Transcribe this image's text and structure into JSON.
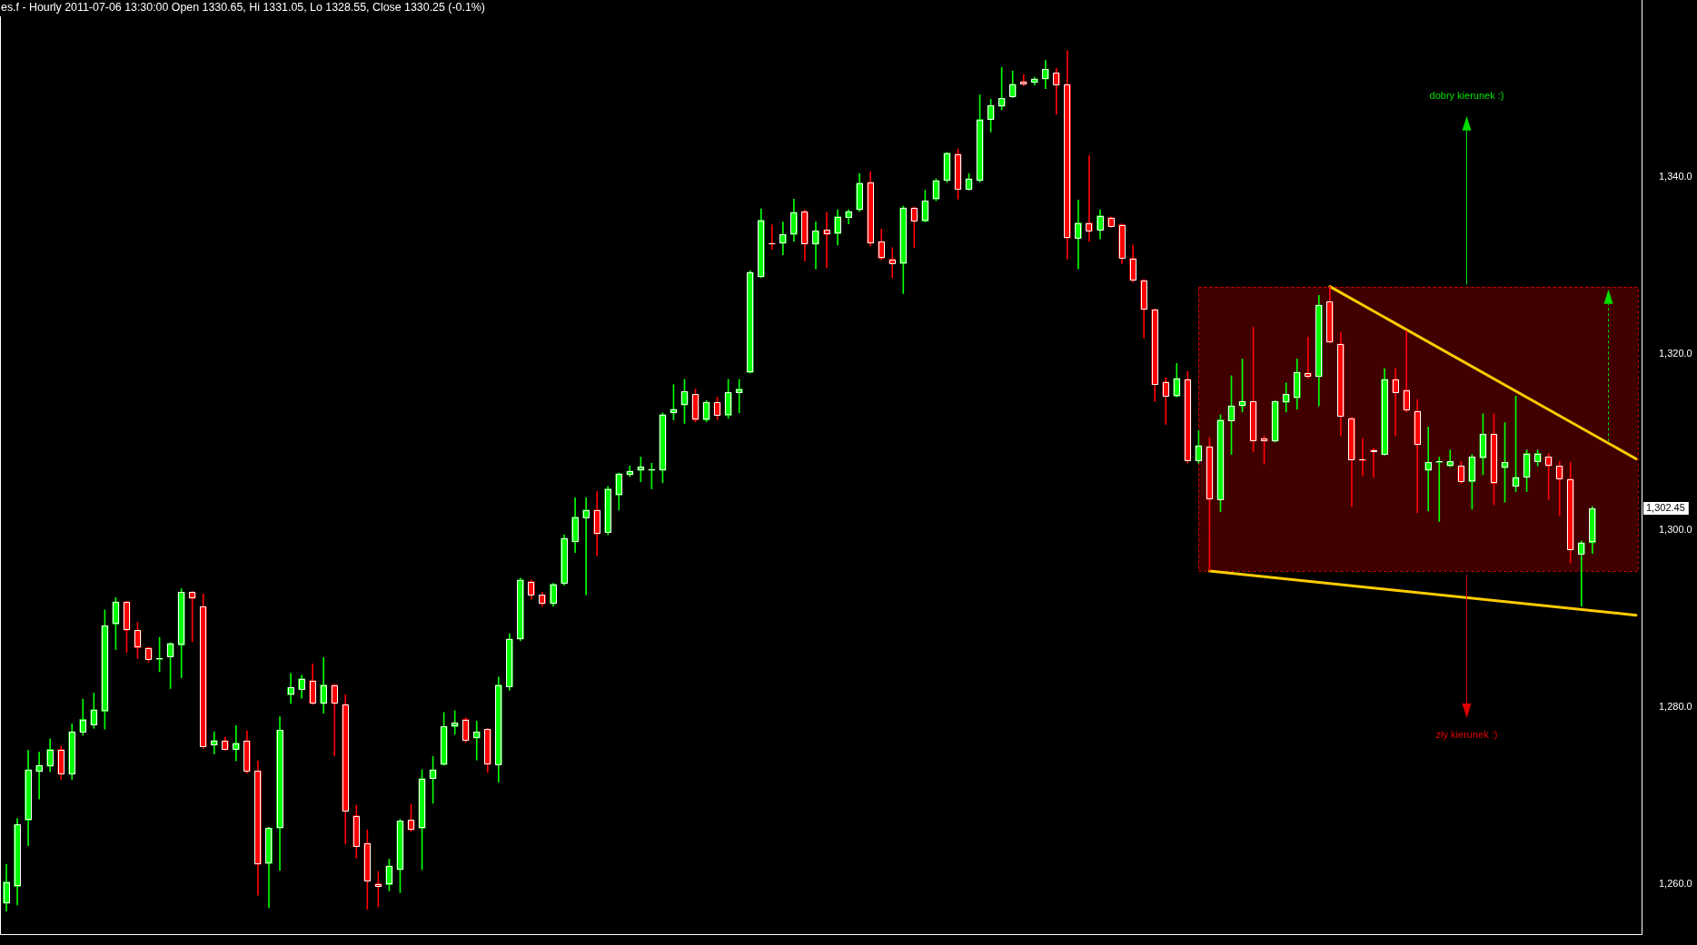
{
  "chart_data": {
    "type": "candlestick",
    "title": "es.f - Hourly 2011-07-06 13:30:00 Open 1330.65, Hi 1331.05, Lo 1328.55, Close 1330.25 (-0.1%)",
    "categories": [
      null,
      null,
      null,
      null,
      null,
      null,
      null,
      null,
      null,
      null,
      null,
      null,
      null,
      null,
      null,
      null,
      null,
      null,
      null,
      null,
      null,
      null,
      null,
      null,
      null,
      null,
      null,
      null,
      null,
      null,
      null,
      null,
      null,
      null,
      null,
      null,
      null,
      null,
      null,
      null,
      null,
      null,
      null,
      null,
      null,
      null,
      null,
      null,
      null,
      null,
      null,
      null,
      null,
      null,
      null,
      null,
      null,
      null,
      null,
      null,
      null,
      null,
      null,
      null,
      null,
      null,
      null,
      null,
      null,
      null,
      null,
      null,
      null,
      null,
      null,
      null,
      null,
      null,
      null,
      null,
      null,
      null,
      null,
      null,
      null,
      null,
      null,
      null,
      null,
      null,
      null,
      null,
      null,
      null,
      null,
      null,
      null,
      null,
      null,
      null,
      null,
      null,
      null,
      null,
      null,
      null,
      null,
      null,
      null,
      null,
      null,
      null,
      null,
      null,
      null,
      null,
      null,
      null,
      null,
      null,
      null,
      null,
      null,
      null,
      null,
      null,
      null,
      null,
      null,
      null,
      null,
      null,
      null,
      null,
      null,
      null,
      null,
      null,
      null,
      null,
      null,
      null,
      null,
      null,
      null,
      null,
      null,
      null,
      null,
      null
    ],
    "ohlc": [
      [
        1257.8,
        1262.2,
        1256.9,
        1260.2
      ],
      [
        1259.7,
        1267.4,
        1257.6,
        1266.7
      ],
      [
        1267.2,
        1275.1,
        1264.3,
        1272.9
      ],
      [
        1272.7,
        1274.9,
        1269.6,
        1273.4
      ],
      [
        1273.3,
        1276.4,
        1272.7,
        1275.2
      ],
      [
        1275.2,
        1275.6,
        1271.8,
        1272.4
      ],
      [
        1272.4,
        1278.1,
        1271.8,
        1277.2
      ],
      [
        1277.2,
        1280.9,
        1276.8,
        1278.6
      ],
      [
        1278.0,
        1281.6,
        1277.6,
        1279.7
      ],
      [
        1279.5,
        1291.0,
        1277.5,
        1289.2
      ],
      [
        1289.4,
        1292.4,
        1286.5,
        1291.9
      ],
      [
        1291.9,
        1292.0,
        1286.2,
        1288.7
      ],
      [
        1288.7,
        1289.6,
        1285.5,
        1286.7
      ],
      [
        1286.7,
        1286.8,
        1285.1,
        1285.4
      ],
      [
        1285.4,
        1287.9,
        1284.0,
        1285.5
      ],
      [
        1285.7,
        1287.3,
        1282.1,
        1287.2
      ],
      [
        1287.0,
        1293.4,
        1283.3,
        1293.0
      ],
      [
        1293.0,
        1293.1,
        1287.4,
        1292.3
      ],
      [
        1291.4,
        1292.8,
        1275.3,
        1275.5
      ],
      [
        1275.7,
        1277.2,
        1274.7,
        1276.2
      ],
      [
        1276.2,
        1276.6,
        1275.1,
        1275.2
      ],
      [
        1275.2,
        1277.9,
        1273.9,
        1275.9
      ],
      [
        1276.2,
        1277.3,
        1272.5,
        1272.7
      ],
      [
        1272.8,
        1273.9,
        1258.7,
        1262.2
      ],
      [
        1262.3,
        1266.4,
        1257.3,
        1266.3
      ],
      [
        1266.3,
        1278.9,
        1261.5,
        1277.4
      ],
      [
        1281.4,
        1283.8,
        1280.4,
        1282.2
      ],
      [
        1282.0,
        1283.6,
        1281.0,
        1283.2
      ],
      [
        1283.0,
        1284.9,
        1280.3,
        1280.4
      ],
      [
        1280.4,
        1285.6,
        1279.3,
        1282.5
      ],
      [
        1282.5,
        1282.6,
        1274.5,
        1280.4
      ],
      [
        1280.3,
        1281.4,
        1264.5,
        1268.2
      ],
      [
        1267.7,
        1268.9,
        1262.9,
        1264.2
      ],
      [
        1264.6,
        1266.1,
        1257.1,
        1260.3
      ],
      [
        1260.0,
        1261.4,
        1257.4,
        1259.7
      ],
      [
        1259.9,
        1262.8,
        1259.2,
        1262.0
      ],
      [
        1261.6,
        1267.3,
        1259.0,
        1267.1
      ],
      [
        1267.2,
        1269.0,
        1265.9,
        1266.1
      ],
      [
        1266.3,
        1272.9,
        1261.6,
        1271.9
      ],
      [
        1271.9,
        1274.4,
        1269.1,
        1272.9
      ],
      [
        1273.5,
        1279.4,
        1273.4,
        1277.8
      ],
      [
        1277.8,
        1279.6,
        1276.9,
        1278.2
      ],
      [
        1278.6,
        1278.8,
        1276.0,
        1276.2
      ],
      [
        1276.5,
        1278.4,
        1274.0,
        1277.2
      ],
      [
        1277.5,
        1277.6,
        1272.6,
        1273.5
      ],
      [
        1273.5,
        1283.4,
        1271.5,
        1282.5
      ],
      [
        1282.3,
        1288.3,
        1281.9,
        1287.7
      ],
      [
        1287.7,
        1294.6,
        1287.5,
        1294.4
      ],
      [
        1294.2,
        1294.4,
        1292.2,
        1292.7
      ],
      [
        1292.7,
        1293.0,
        1291.4,
        1291.7
      ],
      [
        1291.7,
        1294.0,
        1291.4,
        1293.9
      ],
      [
        1294.0,
        1299.5,
        1293.8,
        1299.1
      ],
      [
        1298.7,
        1303.7,
        1297.5,
        1301.5
      ],
      [
        1301.4,
        1303.7,
        1292.7,
        1302.3
      ],
      [
        1302.3,
        1304.4,
        1297.1,
        1299.6
      ],
      [
        1299.8,
        1305.0,
        1299.5,
        1304.7
      ],
      [
        1304.0,
        1306.5,
        1302.3,
        1306.4
      ],
      [
        1306.3,
        1307.3,
        1306.1,
        1306.7
      ],
      [
        1306.8,
        1308.3,
        1305.5,
        1307.2
      ],
      [
        1306.8,
        1307.6,
        1304.7,
        1306.9
      ],
      [
        1306.8,
        1313.3,
        1305.4,
        1313.1
      ],
      [
        1313.3,
        1316.5,
        1312.5,
        1313.7
      ],
      [
        1314.2,
        1317.1,
        1312.1,
        1315.7
      ],
      [
        1315.4,
        1316.0,
        1312.3,
        1312.5
      ],
      [
        1312.5,
        1314.7,
        1312.3,
        1314.5
      ],
      [
        1314.5,
        1315.1,
        1312.5,
        1313.0
      ],
      [
        1313.0,
        1317.1,
        1312.7,
        1315.6
      ],
      [
        1315.6,
        1317.1,
        1313.3,
        1316.0
      ],
      [
        1317.9,
        1329.4,
        1317.8,
        1329.2
      ],
      [
        1328.7,
        1336.4,
        1328.6,
        1335.1
      ],
      [
        1332.5,
        1334.6,
        1331.8,
        1332.4
      ],
      [
        1332.5,
        1334.9,
        1331.2,
        1333.5
      ],
      [
        1333.5,
        1337.5,
        1332.7,
        1336.0
      ],
      [
        1336.1,
        1336.3,
        1330.5,
        1332.4
      ],
      [
        1332.4,
        1334.9,
        1329.6,
        1333.9
      ],
      [
        1334.0,
        1336.0,
        1329.7,
        1333.5
      ],
      [
        1333.6,
        1336.3,
        1332.3,
        1335.5
      ],
      [
        1335.4,
        1336.3,
        1334.7,
        1336.1
      ],
      [
        1336.3,
        1340.4,
        1336.1,
        1339.3
      ],
      [
        1339.4,
        1340.6,
        1332.2,
        1332.5
      ],
      [
        1332.7,
        1334.1,
        1330.6,
        1330.8
      ],
      [
        1330.7,
        1332.0,
        1328.6,
        1330.2
      ],
      [
        1330.2,
        1336.7,
        1326.8,
        1336.5
      ],
      [
        1336.5,
        1336.6,
        1332.0,
        1335.0
      ],
      [
        1335.0,
        1338.5,
        1334.9,
        1337.3
      ],
      [
        1337.5,
        1339.8,
        1337.3,
        1339.6
      ],
      [
        1339.6,
        1342.8,
        1339.4,
        1342.7
      ],
      [
        1342.6,
        1343.2,
        1337.5,
        1338.6
      ],
      [
        1338.6,
        1340.4,
        1338.5,
        1339.8
      ],
      [
        1339.6,
        1349.3,
        1339.4,
        1346.5
      ],
      [
        1346.5,
        1348.8,
        1345.1,
        1348.1
      ],
      [
        1348.0,
        1352.4,
        1347.6,
        1348.9
      ],
      [
        1349.1,
        1352.0,
        1349.0,
        1350.5
      ],
      [
        1350.8,
        1351.6,
        1350.3,
        1350.5
      ],
      [
        1350.7,
        1351.3,
        1350.4,
        1351.1
      ],
      [
        1351.1,
        1353.2,
        1350.0,
        1352.2
      ],
      [
        1351.8,
        1352.3,
        1347.1,
        1350.4
      ],
      [
        1350.5,
        1354.3,
        1330.7,
        1333.1
      ],
      [
        1333.1,
        1337.4,
        1329.6,
        1334.8
      ],
      [
        1334.8,
        1342.4,
        1332.7,
        1333.9
      ],
      [
        1334.0,
        1336.3,
        1333.0,
        1335.6
      ],
      [
        1335.4,
        1335.5,
        1334.3,
        1334.4
      ],
      [
        1334.6,
        1334.7,
        1330.2,
        1330.8
      ],
      [
        1330.8,
        1332.3,
        1328.1,
        1328.3
      ],
      [
        1328.3,
        1328.4,
        1321.8,
        1325.0
      ],
      [
        1325.0,
        1325.1,
        1314.6,
        1316.5
      ],
      [
        1316.8,
        1317.3,
        1312.0,
        1315.2
      ],
      [
        1315.2,
        1318.9,
        1315.1,
        1317.2
      ],
      [
        1317.1,
        1318.0,
        1307.6,
        1307.9
      ],
      [
        1307.9,
        1311.3,
        1307.6,
        1309.6
      ],
      [
        1309.5,
        1310.5,
        1295.4,
        1303.5
      ],
      [
        1303.5,
        1313.1,
        1302.1,
        1312.5
      ],
      [
        1312.4,
        1317.5,
        1308.6,
        1314.1
      ],
      [
        1314.1,
        1319.4,
        1313.4,
        1314.6
      ],
      [
        1314.6,
        1323.0,
        1308.9,
        1310.1
      ],
      [
        1310.4,
        1310.7,
        1307.5,
        1310.1
      ],
      [
        1310.1,
        1314.7,
        1310.0,
        1314.6
      ],
      [
        1314.5,
        1316.7,
        1313.4,
        1315.4
      ],
      [
        1315.0,
        1319.4,
        1313.7,
        1317.9
      ],
      [
        1317.8,
        1321.9,
        1317.2,
        1317.4
      ],
      [
        1317.4,
        1326.6,
        1314.1,
        1325.5
      ],
      [
        1325.9,
        1327.6,
        1321.2,
        1321.3
      ],
      [
        1321.1,
        1322.4,
        1310.7,
        1312.9
      ],
      [
        1312.7,
        1312.8,
        1302.7,
        1308.0
      ],
      [
        1308.0,
        1310.4,
        1306.2,
        1307.9
      ],
      [
        1309.1,
        1309.3,
        1306.0,
        1308.9
      ],
      [
        1308.6,
        1318.3,
        1308.5,
        1317.1
      ],
      [
        1317.1,
        1318.3,
        1310.7,
        1315.6
      ],
      [
        1315.9,
        1322.6,
        1313.4,
        1313.6
      ],
      [
        1313.5,
        1314.8,
        1302.0,
        1309.7
      ],
      [
        1306.8,
        1311.7,
        1302.2,
        1307.7
      ],
      [
        1307.7,
        1308.3,
        1301.0,
        1307.8
      ],
      [
        1307.3,
        1309.1,
        1307.2,
        1307.8
      ],
      [
        1307.3,
        1307.8,
        1305.3,
        1305.5
      ],
      [
        1305.5,
        1308.6,
        1302.4,
        1308.3
      ],
      [
        1308.2,
        1313.2,
        1306.3,
        1310.9
      ],
      [
        1310.9,
        1313.2,
        1302.9,
        1305.3
      ],
      [
        1307.1,
        1312.2,
        1303.2,
        1307.7
      ],
      [
        1305.0,
        1315.2,
        1304.4,
        1306.0
      ],
      [
        1306.0,
        1309.1,
        1304.4,
        1308.7
      ],
      [
        1307.8,
        1309.1,
        1307.3,
        1308.7
      ],
      [
        1308.3,
        1308.7,
        1303.5,
        1307.3
      ],
      [
        1307.3,
        1307.8,
        1301.7,
        1305.8
      ],
      [
        1305.8,
        1307.7,
        1296.3,
        1297.8
      ],
      [
        1297.3,
        1298.8,
        1291.4,
        1298.6
      ],
      [
        1298.6,
        1302.7,
        1297.4,
        1302.45
      ],
      null,
      null,
      null,
      null
    ],
    "colors": [
      "#00ff00",
      "#00ff00",
      "#00ff00",
      "#00ff00",
      "#00ff00",
      "#ff0000",
      "#00ff00",
      "#00ff00",
      "#00ff00",
      "#00ff00",
      "#00ff00",
      "#ff0000",
      "#ff0000",
      "#ff0000",
      "#00ff00",
      "#00ff00",
      "#00ff00",
      "#ff0000",
      "#ff0000",
      "#00ff00",
      "#ff0000",
      "#00ff00",
      "#ff0000",
      "#ff0000",
      "#00ff00",
      "#00ff00",
      "#00ff00",
      "#00ff00",
      "#ff0000",
      "#00ff00",
      "#ff0000",
      "#ff0000",
      "#ff0000",
      "#ff0000",
      "#ff0000",
      "#00ff00",
      "#00ff00",
      "#ff0000",
      "#00ff00",
      "#00ff00",
      "#00ff00",
      "#00ff00",
      "#ff0000",
      "#00ff00",
      "#ff0000",
      "#00ff00",
      "#00ff00",
      "#00ff00",
      "#ff0000",
      "#ff0000",
      "#00ff00",
      "#00ff00",
      "#00ff00",
      "#00ff00",
      "#ff0000",
      "#00ff00",
      "#00ff00",
      "#00ff00",
      "#00ff00",
      "#00ff00",
      "#00ff00",
      "#00ff00",
      "#00ff00",
      "#ff0000",
      "#00ff00",
      "#ff0000",
      "#00ff00",
      "#00ff00",
      "#00ff00",
      "#00ff00",
      "#ff0000",
      "#00ff00",
      "#00ff00",
      "#ff0000",
      "#00ff00",
      "#ff0000",
      "#00ff00",
      "#00ff00",
      "#00ff00",
      "#ff0000",
      "#ff0000",
      "#ff0000",
      "#00ff00",
      "#ff0000",
      "#00ff00",
      "#00ff00",
      "#00ff00",
      "#ff0000",
      "#00ff00",
      "#00ff00",
      "#00ff00",
      "#00ff00",
      "#00ff00",
      "#ff0000",
      "#00ff00",
      "#00ff00",
      "#ff0000",
      "#ff0000",
      "#00ff00",
      "#ff0000",
      "#00ff00",
      "#ff0000",
      "#ff0000",
      "#ff0000",
      "#ff0000",
      "#ff0000",
      "#ff0000",
      "#00ff00",
      "#ff0000",
      "#00ff00",
      "#ff0000",
      "#00ff00",
      "#00ff00",
      "#00ff00",
      "#ff0000",
      "#ff0000",
      "#00ff00",
      "#00ff00",
      "#00ff00",
      "#ff0000",
      "#00ff00",
      "#ff0000",
      "#ff0000",
      "#ff0000",
      "#ff0000",
      "#ff0000",
      "#00ff00",
      "#ff0000",
      "#ff0000",
      "#ff0000",
      "#00ff00",
      "#00ff00",
      "#00ff00",
      "#ff0000",
      "#00ff00",
      "#00ff00",
      "#ff0000",
      "#00ff00",
      "#00ff00",
      "#00ff00",
      "#00ff00",
      "#ff0000",
      "#ff0000",
      "#ff0000",
      "#00ff00",
      "#00ff00",
      null,
      null,
      null,
      null
    ],
    "color": "#ffffff",
    "series": [
      {
        "type": "line",
        "color": "#ffcc00",
        "values": [
          null,
          null,
          null,
          null,
          null,
          null,
          null,
          null,
          null,
          null,
          null,
          null,
          null,
          null,
          null,
          null,
          null,
          null,
          null,
          null,
          null,
          null,
          null,
          null,
          null,
          null,
          null,
          null,
          null,
          null,
          null,
          null,
          null,
          null,
          null,
          null,
          null,
          null,
          null,
          null,
          null,
          null,
          null,
          null,
          null,
          null,
          null,
          null,
          null,
          null,
          null,
          null,
          null,
          null,
          null,
          null,
          null,
          null,
          null,
          null,
          null,
          null,
          null,
          null,
          null,
          null,
          null,
          null,
          null,
          null,
          null,
          null,
          null,
          null,
          null,
          null,
          null,
          null,
          null,
          null,
          null,
          null,
          null,
          null,
          null,
          null,
          null,
          null,
          null,
          null,
          null,
          null,
          null,
          null,
          null,
          null,
          null,
          null,
          null,
          null,
          null,
          null,
          null,
          null,
          null,
          null,
          null,
          null,
          null,
          null,
          null,
          null,
          null,
          null,
          null,
          null,
          null,
          null,
          null,
          null,
          null,
          1327.6,
          null,
          null,
          null,
          null,
          null,
          null,
          null,
          null,
          null,
          null,
          null,
          null,
          null,
          null,
          null,
          null,
          null,
          null,
          null,
          null,
          null,
          null,
          null,
          null,
          null,
          null,
          null,
          1308.1
        ]
      },
      {
        "type": "line",
        "color": "#ffcc00",
        "values": [
          null,
          null,
          null,
          null,
          null,
          null,
          null,
          null,
          null,
          null,
          null,
          null,
          null,
          null,
          null,
          null,
          null,
          null,
          null,
          null,
          null,
          null,
          null,
          null,
          null,
          null,
          null,
          null,
          null,
          null,
          null,
          null,
          null,
          null,
          null,
          null,
          null,
          null,
          null,
          null,
          null,
          null,
          null,
          null,
          null,
          null,
          null,
          null,
          null,
          null,
          null,
          null,
          null,
          null,
          null,
          null,
          null,
          null,
          null,
          null,
          null,
          null,
          null,
          null,
          null,
          null,
          null,
          null,
          null,
          null,
          null,
          null,
          null,
          null,
          null,
          null,
          null,
          null,
          null,
          null,
          null,
          null,
          null,
          null,
          null,
          null,
          null,
          null,
          null,
          null,
          null,
          null,
          null,
          null,
          null,
          null,
          null,
          null,
          null,
          null,
          null,
          null,
          null,
          null,
          null,
          null,
          null,
          null,
          null,
          null,
          1295.4,
          null,
          null,
          null,
          null,
          null,
          null,
          null,
          null,
          null,
          null,
          null,
          null,
          null,
          null,
          null,
          null,
          null,
          null,
          null,
          null,
          null,
          null,
          null,
          null,
          null,
          null,
          null,
          null,
          null,
          null,
          null,
          null,
          null,
          null,
          null,
          null,
          null,
          null,
          1290.4
        ]
      }
    ],
    "ylim": [
      1254.3,
      1358.2
    ],
    "yticks": [
      {
        "value": 1260,
        "label": "1,260.0"
      },
      {
        "value": 1280,
        "label": "1,280.0"
      },
      {
        "value": 1300,
        "label": "1,300.0"
      },
      {
        "value": 1320,
        "label": "1,320.0"
      },
      {
        "value": 1340,
        "label": "1,340.0"
      }
    ],
    "grid": "y",
    "bands": [
      {
        "axis": "y",
        "from": 1295.4,
        "to": 1327.6,
        "color": "#400000"
      }
    ],
    "annotations": [
      "dobry kierunek :)",
      "1,302.45",
      "zły kierunek :)"
    ]
  }
}
